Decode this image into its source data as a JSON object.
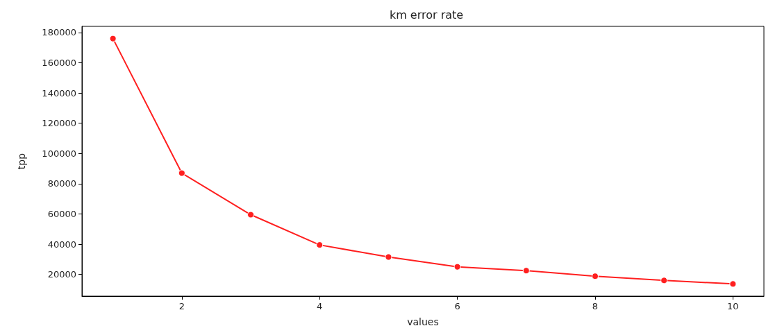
{
  "chart_data": {
    "type": "line",
    "title": "km error rate",
    "xlabel": "values",
    "ylabel": "tpp",
    "x": [
      1,
      2,
      3,
      4,
      5,
      6,
      7,
      8,
      9,
      10
    ],
    "series": [
      {
        "color": "#ff1f1f",
        "values": [
          176000,
          87000,
          59500,
          39500,
          31500,
          25000,
          22500,
          18800,
          16000,
          13700
        ]
      }
    ],
    "xlim": [
      0.55,
      10.45
    ],
    "xticks": [
      2,
      4,
      6,
      8,
      10
    ],
    "ylim": [
      5600,
      184100
    ],
    "yticks": [
      20000,
      40000,
      60000,
      80000,
      100000,
      120000,
      140000,
      160000,
      180000
    ],
    "grid": false,
    "marker": "circle",
    "line_style": "solid"
  }
}
